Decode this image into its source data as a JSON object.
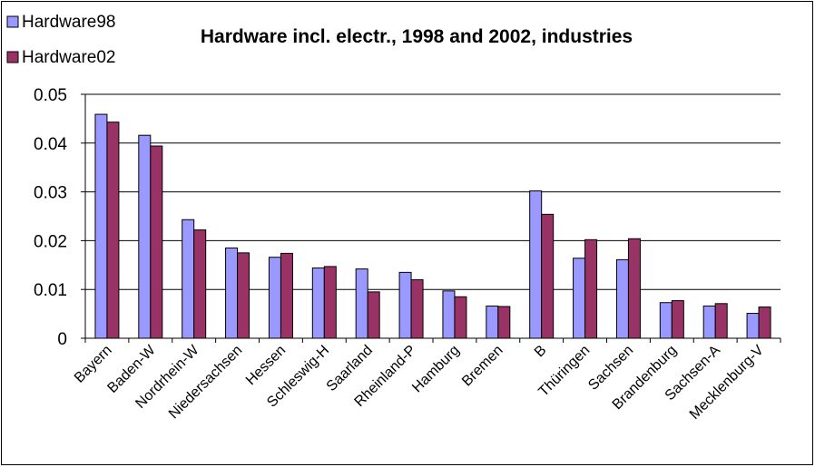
{
  "chart_data": {
    "type": "bar",
    "title": "Hardware incl. electr., 1998 and 2002, industries",
    "xlabel": "",
    "ylabel": "",
    "ylim": [
      0,
      0.05
    ],
    "yticks": [
      "0",
      "0.01",
      "0.02",
      "0.03",
      "0.04",
      "0.05"
    ],
    "grid": true,
    "legend_position": "top-left",
    "categories": [
      "Bayern",
      "Baden-W",
      "Nordrhein-W",
      "Niedersachsen",
      "Hessen",
      "Schleswig-H",
      "Saarland",
      "Rheinland-P",
      "Hamburg",
      "Bremen",
      "B",
      "Thüringen",
      "Sachsen",
      "Brandenburg",
      "Sachsen-A",
      "Mecklenburg-V"
    ],
    "series": [
      {
        "name": "Hardware98",
        "color": "#9999ff",
        "values": [
          0.0459,
          0.0416,
          0.0243,
          0.0185,
          0.0166,
          0.0144,
          0.0142,
          0.0135,
          0.0097,
          0.0066,
          0.0302,
          0.0164,
          0.0161,
          0.0073,
          0.0066,
          0.0051
        ]
      },
      {
        "name": "Hardware02",
        "color": "#993366",
        "values": [
          0.0443,
          0.0394,
          0.0222,
          0.0175,
          0.0174,
          0.0147,
          0.0095,
          0.012,
          0.0085,
          0.0065,
          0.0254,
          0.0202,
          0.0204,
          0.0077,
          0.0071,
          0.0064
        ]
      }
    ]
  }
}
